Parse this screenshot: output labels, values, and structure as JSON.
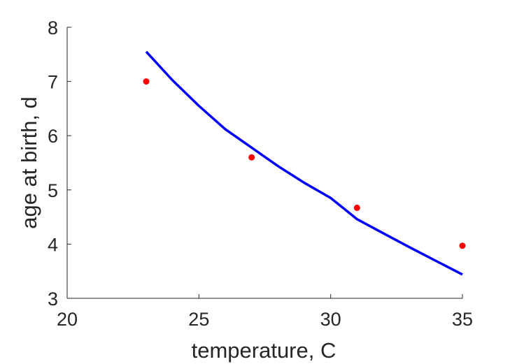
{
  "chart_data": {
    "type": "scatter",
    "title": "",
    "xlabel": "temperature, C",
    "ylabel": "age at birth, d",
    "xlim": [
      20,
      35
    ],
    "ylim": [
      3,
      8
    ],
    "xticks": [
      "20",
      "25",
      "30",
      "35"
    ],
    "yticks": [
      "3",
      "4",
      "5",
      "6",
      "7",
      "8"
    ],
    "grid": false,
    "legend": "none",
    "series": [
      {
        "kind": "points",
        "color": "#ff0000",
        "x": [
          23,
          27,
          31,
          35
        ],
        "y": [
          7.0,
          5.6,
          4.67,
          3.97
        ]
      },
      {
        "kind": "line",
        "color": "#0000ff",
        "x": [
          23,
          24,
          25,
          26,
          27,
          28,
          29,
          30,
          31,
          32,
          33,
          34,
          35
        ],
        "y": [
          7.55,
          7.02,
          6.55,
          6.12,
          5.78,
          5.44,
          5.13,
          4.85,
          4.46,
          4.2,
          3.94,
          3.69,
          3.44
        ]
      }
    ]
  }
}
